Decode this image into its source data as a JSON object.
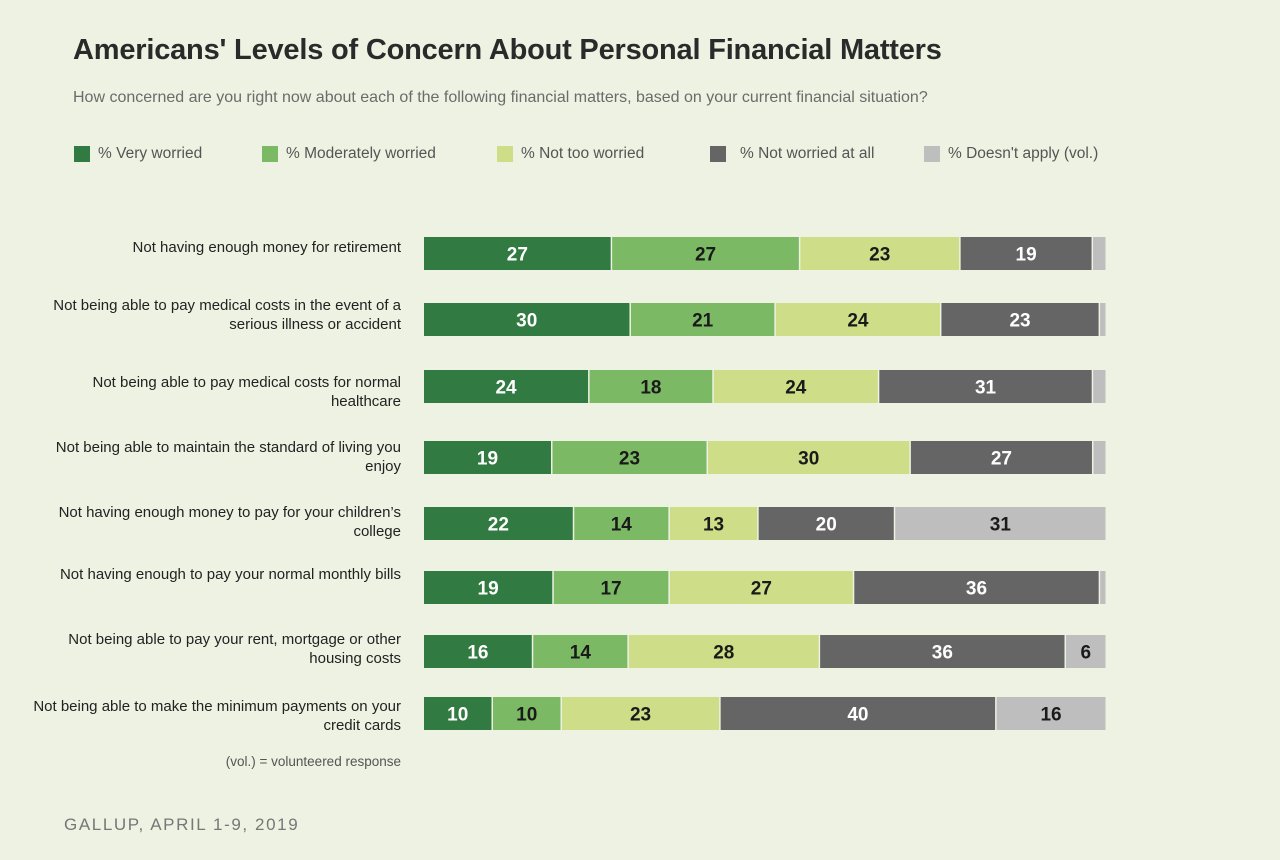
{
  "title": "Americans' Levels of Concern About Personal Financial Matters",
  "subtitle": "How concerned are you right now about each of the following financial matters, based on your current financial situation?",
  "note": "(vol.) = volunteered response",
  "source": "GALLUP, APRIL 1-9, 2019",
  "chart_data": {
    "type": "bar",
    "orientation": "horizontal",
    "stacked": true,
    "xlim": [
      0,
      100
    ],
    "grid": false,
    "legend_position": "top",
    "categories": [
      "Not having enough money for retirement",
      "Not being able to pay medical costs in the event of a serious illness or accident",
      "Not being able to pay medical costs for normal healthcare",
      "Not being able to maintain the standard of living you enjoy",
      "Not having enough money to pay for your children’s college",
      "Not having enough to pay your normal monthly bills",
      "Not being able to pay your rent, mortgage or other housing costs",
      "Not being able to make the minimum payments on your credit cards"
    ],
    "series": [
      {
        "name": "% Very worried",
        "color": "#317a41",
        "label_color": "#ffffff",
        "values": [
          27,
          30,
          24,
          19,
          22,
          19,
          16,
          10
        ]
      },
      {
        "name": "% Moderately worried",
        "color": "#7bb964",
        "label_color": "#1a1a1a",
        "values": [
          27,
          21,
          18,
          23,
          14,
          17,
          14,
          10
        ]
      },
      {
        "name": "% Not too worried",
        "color": "#cedd87",
        "label_color": "#1a1a1a",
        "values": [
          23,
          24,
          24,
          30,
          13,
          27,
          28,
          23
        ]
      },
      {
        "name": "% Not worried at all",
        "color": "#656565",
        "label_color": "#ffffff",
        "values": [
          19,
          23,
          31,
          27,
          20,
          36,
          36,
          40
        ]
      },
      {
        "name": "% Doesn't apply (vol.)",
        "color": "#bebebe",
        "label_color": "#1a1a1a",
        "values": [
          2,
          1,
          2,
          2,
          31,
          1,
          6,
          16
        ],
        "labels": [
          "",
          "",
          "",
          "",
          "31",
          "",
          "6",
          "16"
        ]
      }
    ]
  }
}
